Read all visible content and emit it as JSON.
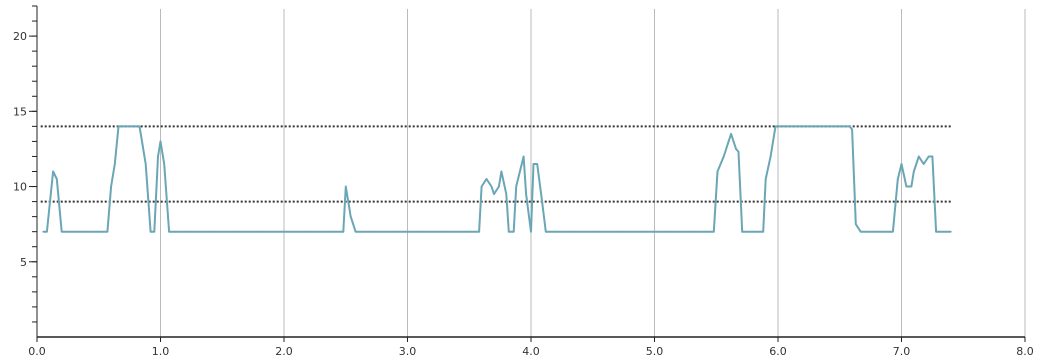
{
  "colors": {
    "series": "#6aa6b6",
    "threshold": "#333333",
    "grid": "#bbbbbb",
    "axis": "#222222",
    "tick": "#333333"
  },
  "chart_data": {
    "type": "line",
    "title": "",
    "xlabel": "",
    "ylabel": "",
    "xlim": [
      0,
      8
    ],
    "ylim": [
      0,
      22
    ],
    "grid": {
      "vertical": true,
      "horizontal": false
    },
    "x_ticks": [
      {
        "value": 0,
        "label": "0.0"
      },
      {
        "value": 1,
        "label": "1.0"
      },
      {
        "value": 2,
        "label": "2.0"
      },
      {
        "value": 3,
        "label": "3.0"
      },
      {
        "value": 4,
        "label": "4.0"
      },
      {
        "value": 5,
        "label": "5.0"
      },
      {
        "value": 6,
        "label": "6.0"
      },
      {
        "value": 7,
        "label": "7.0"
      },
      {
        "value": 8,
        "label": "8.0"
      }
    ],
    "y_ticks": [
      {
        "value": 5,
        "label": "5"
      },
      {
        "value": 10,
        "label": "10"
      },
      {
        "value": 15,
        "label": "15"
      },
      {
        "value": 20,
        "label": "20"
      }
    ],
    "y_minor_step": 1,
    "thresholds": [
      {
        "y": 14,
        "x_start": 0.03,
        "x_end": 7.4
      },
      {
        "y": 9,
        "x_start": 0.03,
        "x_end": 7.4
      }
    ],
    "series": [
      {
        "x": [
          0.05,
          0.08,
          0.13,
          0.16,
          0.2,
          0.25,
          0.3,
          0.4,
          0.5,
          0.57,
          0.6,
          0.63,
          0.66,
          0.7,
          0.75,
          0.8,
          0.83,
          0.85,
          0.88,
          0.92,
          0.95,
          0.98,
          1.0,
          1.03,
          1.07,
          1.1,
          1.2,
          1.4,
          1.6,
          1.8,
          2.0,
          2.2,
          2.4,
          2.48,
          2.5,
          2.54,
          2.58,
          2.7,
          2.9,
          3.1,
          3.3,
          3.5,
          3.58,
          3.6,
          3.64,
          3.68,
          3.7,
          3.74,
          3.76,
          3.8,
          3.82,
          3.86,
          3.88,
          3.94,
          3.96,
          4.0,
          4.02,
          4.05,
          4.09,
          4.12,
          4.18,
          4.3,
          4.5,
          4.7,
          4.9,
          5.1,
          5.3,
          5.45,
          5.48,
          5.51,
          5.56,
          5.6,
          5.62,
          5.66,
          5.68,
          5.71,
          5.8,
          5.88,
          5.9,
          5.94,
          5.98,
          6.02,
          6.1,
          6.3,
          6.5,
          6.58,
          6.6,
          6.63,
          6.67,
          6.8,
          6.93,
          6.97,
          7.0,
          7.04,
          7.08,
          7.1,
          7.14,
          7.18,
          7.22,
          7.25,
          7.28,
          7.3,
          7.35,
          7.4
        ],
        "y": [
          7,
          7,
          11,
          10.5,
          7,
          7,
          7,
          7,
          7,
          7,
          10,
          11.5,
          14,
          14,
          14,
          14,
          14,
          13,
          11.5,
          7,
          7,
          12,
          13,
          11.5,
          7,
          7,
          7,
          7,
          7,
          7,
          7,
          7,
          7,
          7,
          10,
          8,
          7,
          7,
          7,
          7,
          7,
          7,
          7,
          10,
          10.5,
          10,
          9.5,
          10,
          11,
          9.5,
          7,
          7,
          10,
          12,
          9.5,
          7,
          11.5,
          11.5,
          9,
          7,
          7,
          7,
          7,
          7,
          7,
          7,
          7,
          7,
          7,
          11,
          12,
          13,
          13.5,
          12.5,
          12.3,
          7,
          7,
          7,
          10.5,
          12,
          14,
          14,
          14,
          14,
          14,
          14,
          13.8,
          7.5,
          7,
          7,
          7,
          10.5,
          11.5,
          10,
          10,
          11,
          12,
          11.5,
          12,
          12,
          7,
          7,
          7,
          7
        ]
      }
    ]
  }
}
